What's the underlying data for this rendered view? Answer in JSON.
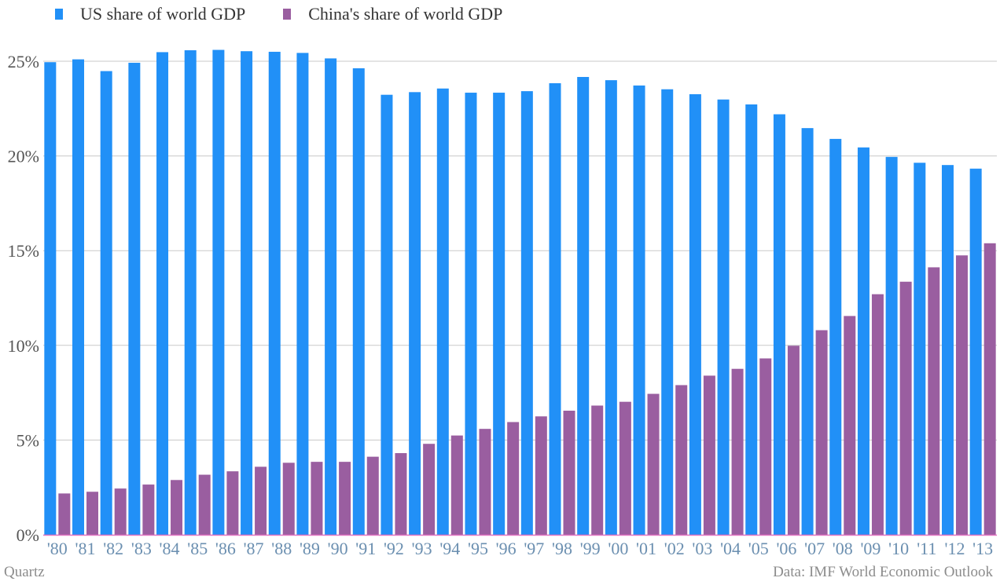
{
  "colors": {
    "us": "#2190f7",
    "china": "#9a5ea0",
    "grid": "#c8c8c8",
    "baseline": "#e070c0"
  },
  "legend": {
    "us_label": "US share of world GDP",
    "china_label": "China's share of world GDP"
  },
  "footer": {
    "source_left": "Quartz",
    "source_right": "Data: IMF World Economic Outlook"
  },
  "chart_data": {
    "type": "bar",
    "title": "",
    "xlabel": "",
    "ylabel": "",
    "ylim": [
      0,
      25
    ],
    "yticks": [
      0,
      5,
      10,
      15,
      20,
      25
    ],
    "ytick_labels": [
      "0%",
      "5%",
      "10%",
      "15%",
      "20%",
      "25%"
    ],
    "grid": true,
    "legend_position": "top-left",
    "categories": [
      "'80",
      "'81",
      "'82",
      "'83",
      "'84",
      "'85",
      "'86",
      "'87",
      "'88",
      "'89",
      "'90",
      "'91",
      "'92",
      "'93",
      "'94",
      "'95",
      "'96",
      "'97",
      "'98",
      "'99",
      "'00",
      "'01",
      "'02",
      "'03",
      "'04",
      "'05",
      "'06",
      "'07",
      "'08",
      "'09",
      "'10",
      "'11",
      "'12",
      "'13"
    ],
    "series": [
      {
        "name": "US share of world GDP",
        "values": [
          24.95,
          25.1,
          24.48,
          24.92,
          25.48,
          25.58,
          25.6,
          25.53,
          25.5,
          25.44,
          25.15,
          24.63,
          23.23,
          23.37,
          23.56,
          23.34,
          23.34,
          23.42,
          23.84,
          24.17,
          24.0,
          23.72,
          23.52,
          23.26,
          22.98,
          22.72,
          22.2,
          21.47,
          20.9,
          20.45,
          19.95,
          19.64,
          19.52,
          19.33
        ]
      },
      {
        "name": "China's share of world GDP",
        "values": [
          2.18,
          2.27,
          2.44,
          2.65,
          2.89,
          3.17,
          3.35,
          3.59,
          3.8,
          3.85,
          3.85,
          4.12,
          4.31,
          4.8,
          5.24,
          5.59,
          5.95,
          6.25,
          6.55,
          6.82,
          7.02,
          7.44,
          7.9,
          8.4,
          8.76,
          9.31,
          9.98,
          10.8,
          11.55,
          12.7,
          13.36,
          14.12,
          14.75,
          15.39
        ]
      }
    ]
  }
}
